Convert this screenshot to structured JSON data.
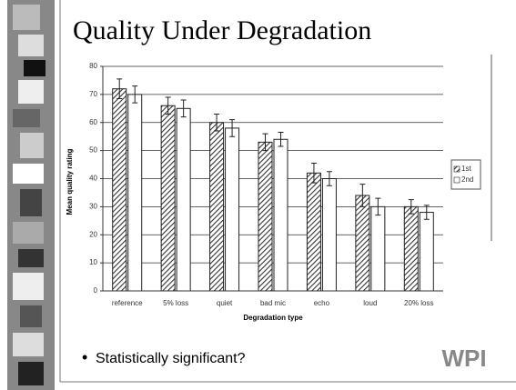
{
  "title": "Quality Under Degradation",
  "bullet": "Statistically significant?",
  "logo": "WPI",
  "chart_data": {
    "type": "bar",
    "y_label": "Mean quality rating",
    "x_label": "Degradation type",
    "categories": [
      "reference",
      "5% loss",
      "quiet",
      "bad mic",
      "echo",
      "loud",
      "20% loss"
    ],
    "series": [
      {
        "name": "1st",
        "color": "#555555",
        "values": [
          72,
          66,
          60,
          53,
          42,
          34,
          30
        ],
        "errors": [
          3.5,
          3,
          3,
          3,
          3.5,
          4,
          2.5
        ]
      },
      {
        "name": "2nd",
        "color": "#ffffff",
        "values": [
          70,
          65,
          58,
          54,
          40,
          30,
          28
        ],
        "errors": [
          3,
          3,
          3,
          2.5,
          2.5,
          3,
          2.5
        ]
      }
    ],
    "ylim": [
      0,
      80
    ],
    "yticks": [
      0,
      10,
      20,
      30,
      40,
      50,
      60,
      70,
      80
    ],
    "grid": true,
    "legend": "right"
  }
}
